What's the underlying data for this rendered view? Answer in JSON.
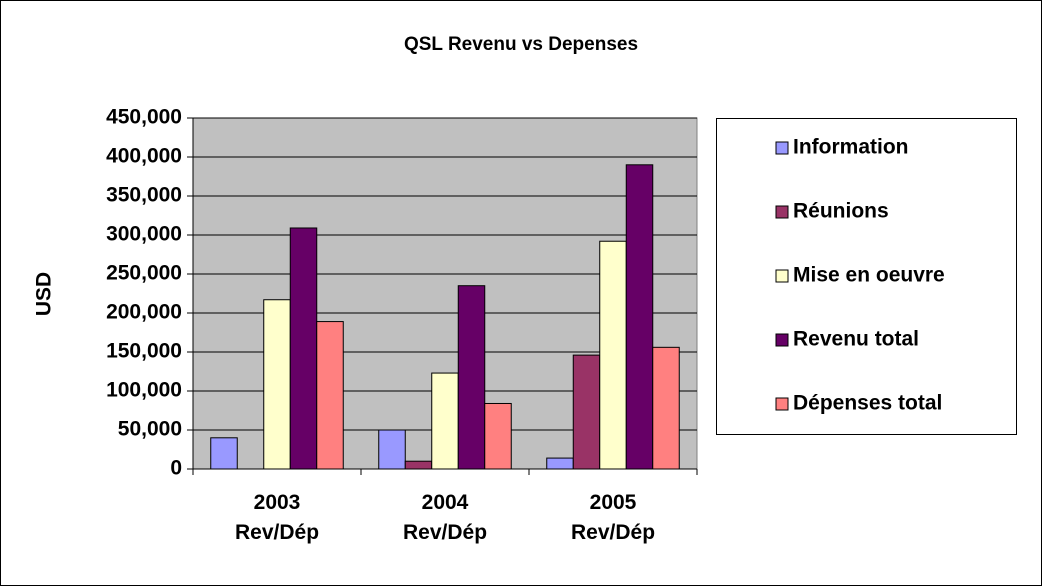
{
  "chart_data": {
    "type": "bar",
    "title": "QSL Revenu vs Depenses",
    "y_label": "USD",
    "categories": [
      "2003\nRev/Dép",
      "2004\nRev/Dép",
      "2005\nRev/Dép"
    ],
    "series": [
      {
        "name": "Information",
        "color": "#9999ff",
        "values": [
          40000,
          50000,
          14000
        ]
      },
      {
        "name": "Réunions",
        "color": "#993366",
        "values": [
          0,
          10000,
          146000
        ]
      },
      {
        "name": "Mise en oeuvre",
        "color": "#ffffcc",
        "values": [
          217000,
          123000,
          292000
        ]
      },
      {
        "name": "Revenu total",
        "color": "#660066",
        "values": [
          309000,
          235000,
          390000
        ]
      },
      {
        "name": "Dépenses total",
        "color": "#ff8080",
        "values": [
          189000,
          84000,
          156000
        ]
      }
    ],
    "ylim": [
      0,
      450000
    ],
    "yticks": [
      0,
      {
        "value": 50000,
        "label": "50,000"
      },
      {
        "value": 100000,
        "label": "100,000"
      },
      {
        "value": 150000,
        "label": "150,000"
      },
      {
        "value": 200000,
        "label": "200,000"
      },
      {
        "value": 250000,
        "label": "250,000"
      },
      {
        "value": 300000,
        "label": "300,000"
      },
      {
        "value": 350000,
        "label": "350,000"
      },
      {
        "value": 400000,
        "label": "400,000"
      },
      {
        "value": 450000,
        "label": "450,000"
      }
    ],
    "grid": true,
    "plot_background": "#c0c0c0",
    "legend": "right"
  }
}
